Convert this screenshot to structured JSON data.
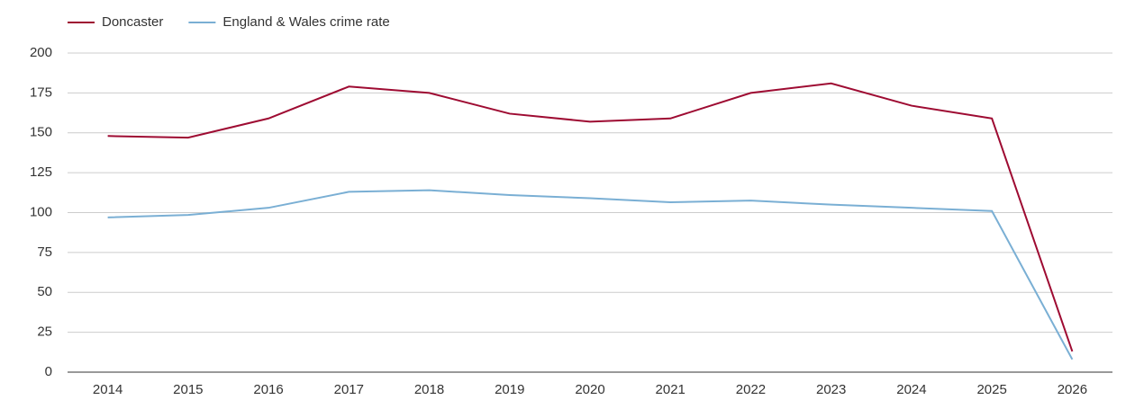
{
  "chart_data": {
    "type": "line",
    "categories": [
      "2014",
      "2015",
      "2016",
      "2017",
      "2018",
      "2019",
      "2020",
      "2021",
      "2022",
      "2023",
      "2024",
      "2025",
      "2026"
    ],
    "series": [
      {
        "name": "Doncaster",
        "color": "#9e0b32",
        "values": [
          148,
          147,
          159,
          179,
          175,
          162,
          157,
          159,
          175,
          181,
          167,
          159,
          13
        ]
      },
      {
        "name": "England & Wales crime rate",
        "color": "#7aafd4",
        "values": [
          97,
          98.5,
          103,
          113,
          114,
          111,
          109,
          106.5,
          107.5,
          105,
          103,
          101,
          8
        ]
      }
    ],
    "ylim": [
      0,
      200
    ],
    "yticks": [
      0,
      25,
      50,
      75,
      100,
      125,
      150,
      175,
      200
    ],
    "grid": true,
    "legend": "top-left"
  }
}
